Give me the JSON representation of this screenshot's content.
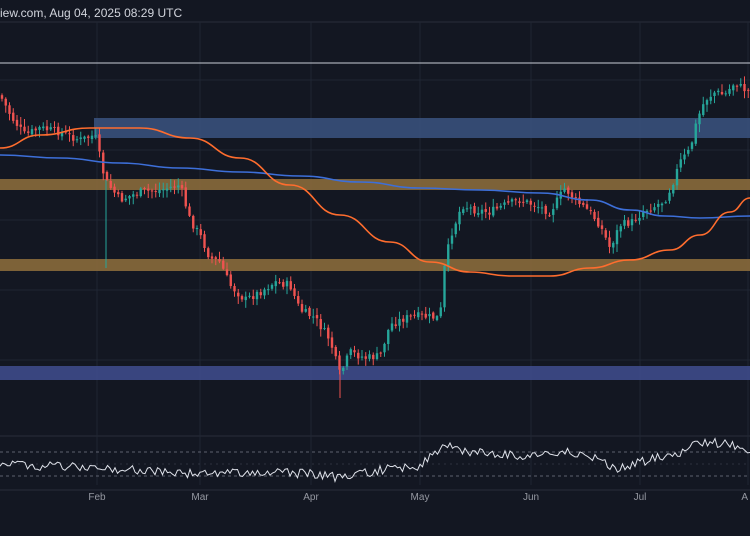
{
  "header": {
    "text": "iew.com, Aug 04, 2025 08:29 UTC"
  },
  "colors": {
    "background": "#131722",
    "grid": "#1f2533",
    "up": "#26a69a",
    "down": "#ef5350",
    "ma_orange": "#ff6d2e",
    "ma_blue": "#3d6fd9",
    "zone_blue": "#3b5480",
    "zone_orange": "#8a6a3b",
    "zone_indigo": "#3e4a8a",
    "rsi_line": "#e0e3eb",
    "top_line": "#c9ccd6"
  },
  "chart_data": {
    "type": "candlestick",
    "x_tick_labels": [
      "Feb",
      "Mar",
      "Apr",
      "May",
      "Jun",
      "Jul",
      "A"
    ],
    "series": [
      {
        "kind": "candles"
      },
      {
        "kind": "moving-average",
        "color": "orange"
      },
      {
        "kind": "moving-average",
        "color": "blue"
      },
      {
        "kind": "rsi-oscillator"
      }
    ],
    "zones": [
      {
        "color": "blue"
      },
      {
        "color": "orange"
      },
      {
        "color": "orange"
      },
      {
        "color": "indigo"
      }
    ],
    "grid": true,
    "legend": "none"
  }
}
